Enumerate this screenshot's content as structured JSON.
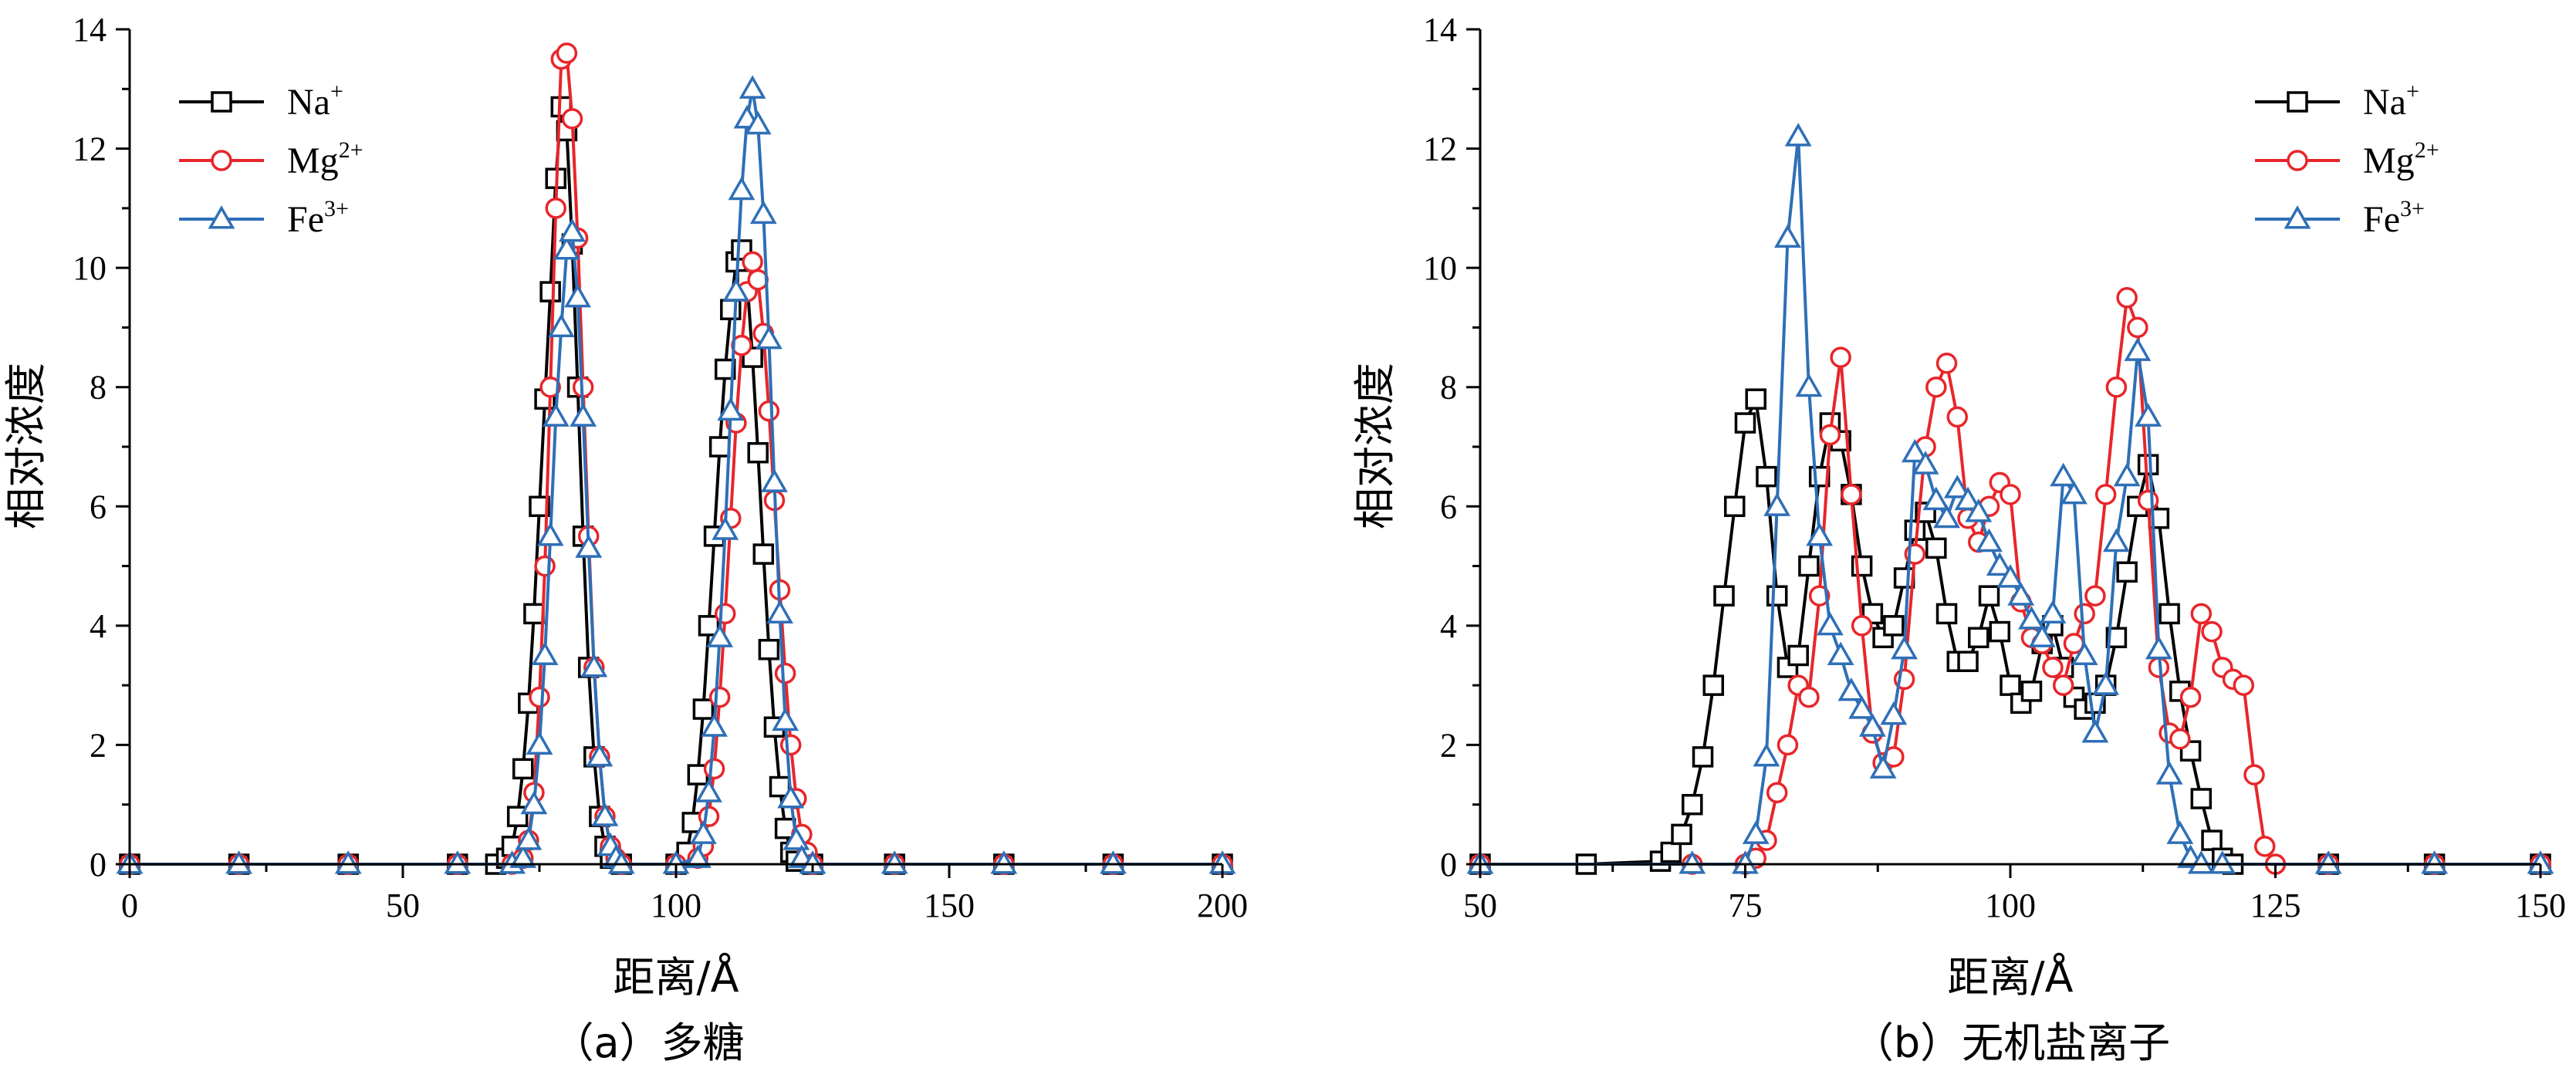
{
  "chart_data": [
    {
      "type": "line",
      "xlabel": "距离/Å",
      "ylabel": "相对浓度",
      "caption": "（a）多糖",
      "xlim": [
        0,
        200
      ],
      "ylim": [
        0,
        14
      ],
      "xticks": [
        0,
        50,
        100,
        150,
        200
      ],
      "yticks": [
        0,
        2,
        4,
        6,
        8,
        10,
        12,
        14
      ],
      "legend_position": "top-left",
      "series": [
        {
          "name": "Na",
          "sup": "+",
          "color": "#000000",
          "marker": "square",
          "x": [
            0,
            20,
            40,
            60,
            67,
            69,
            70,
            71,
            72,
            73,
            74,
            75,
            76,
            77,
            78,
            79,
            80,
            81,
            82,
            83,
            84,
            85,
            86,
            87,
            88,
            90,
            100,
            102,
            103,
            104,
            105,
            106,
            107,
            108,
            109,
            110,
            111,
            112,
            113,
            114,
            115,
            116,
            117,
            118,
            119,
            120,
            121,
            122,
            125,
            140,
            160,
            180,
            200
          ],
          "y": [
            0,
            0,
            0,
            0,
            0,
            0.1,
            0.3,
            0.8,
            1.6,
            2.7,
            4.2,
            6,
            7.8,
            9.6,
            11.5,
            12.7,
            12.3,
            10.4,
            8,
            5.5,
            3.3,
            1.8,
            0.8,
            0.3,
            0.1,
            0,
            0,
            0.2,
            0.7,
            1.5,
            2.6,
            4,
            5.5,
            7,
            8.3,
            9.3,
            10.1,
            10.3,
            9.8,
            8.5,
            6.9,
            5.2,
            3.6,
            2.3,
            1.3,
            0.6,
            0.2,
            0.05,
            0,
            0,
            0,
            0,
            0
          ]
        },
        {
          "name": "Mg",
          "sup": "2+",
          "color": "#e8262a",
          "marker": "circle",
          "x": [
            0,
            20,
            40,
            60,
            70,
            72,
            73,
            74,
            75,
            76,
            77,
            78,
            79,
            80,
            81,
            82,
            83,
            84,
            85,
            86,
            87,
            88,
            89,
            90,
            100,
            104,
            105,
            106,
            107,
            108,
            109,
            110,
            111,
            112,
            113,
            114,
            115,
            116,
            117,
            118,
            119,
            120,
            121,
            122,
            123,
            124,
            125,
            140,
            160,
            180,
            200
          ],
          "y": [
            0,
            0,
            0,
            0,
            0,
            0.1,
            0.4,
            1.2,
            2.8,
            5,
            8,
            11,
            13.5,
            13.6,
            12.5,
            10.5,
            8,
            5.5,
            3.3,
            1.8,
            0.8,
            0.3,
            0.1,
            0,
            0,
            0.1,
            0.3,
            0.8,
            1.6,
            2.8,
            4.2,
            5.8,
            7.4,
            8.7,
            9.6,
            10.1,
            9.8,
            8.9,
            7.6,
            6.1,
            4.6,
            3.2,
            2,
            1.1,
            0.5,
            0.2,
            0,
            0,
            0,
            0,
            0
          ]
        },
        {
          "name": "Fe",
          "sup": "3+",
          "color": "#2e6fb7",
          "marker": "triangle",
          "x": [
            0,
            20,
            40,
            60,
            70,
            72,
            73,
            74,
            75,
            76,
            77,
            78,
            79,
            80,
            81,
            82,
            83,
            84,
            85,
            86,
            87,
            88,
            89,
            90,
            100,
            104,
            105,
            106,
            107,
            108,
            109,
            110,
            111,
            112,
            113,
            114,
            115,
            116,
            117,
            118,
            119,
            120,
            121,
            122,
            123,
            125,
            140,
            160,
            180,
            200
          ],
          "y": [
            0,
            0,
            0,
            0,
            0,
            0.1,
            0.4,
            1,
            2,
            3.5,
            5.5,
            7.5,
            9,
            10.3,
            10.6,
            9.5,
            7.5,
            5.3,
            3.3,
            1.8,
            0.8,
            0.3,
            0.1,
            0,
            0,
            0.1,
            0.5,
            1.2,
            2.3,
            3.8,
            5.6,
            7.6,
            9.6,
            11.3,
            12.5,
            13,
            12.4,
            10.9,
            8.8,
            6.4,
            4.2,
            2.4,
            1.1,
            0.4,
            0.1,
            0,
            0,
            0,
            0,
            0
          ]
        }
      ]
    },
    {
      "type": "line",
      "xlabel": "距离/Å",
      "ylabel": "相对浓度",
      "caption": "（b）无机盐离子",
      "xlim": [
        50,
        150
      ],
      "ylim": [
        0,
        14
      ],
      "xticks": [
        50,
        75,
        100,
        125,
        150
      ],
      "yticks": [
        0,
        2,
        4,
        6,
        8,
        10,
        12,
        14
      ],
      "legend_position": "top-right",
      "series": [
        {
          "name": "Na",
          "sup": "+",
          "color": "#000000",
          "marker": "square",
          "x": [
            50,
            60,
            67,
            68,
            69,
            70,
            71,
            72,
            73,
            74,
            75,
            76,
            77,
            78,
            79,
            80,
            81,
            82,
            83,
            84,
            85,
            86,
            87,
            88,
            89,
            90,
            91,
            92,
            93,
            94,
            95,
            96,
            97,
            98,
            99,
            100,
            101,
            102,
            103,
            104,
            105,
            106,
            107,
            108,
            109,
            110,
            111,
            112,
            113,
            114,
            115,
            116,
            117,
            118,
            119,
            120,
            121,
            130,
            140,
            150
          ],
          "y": [
            0,
            0,
            0.05,
            0.2,
            0.5,
            1,
            1.8,
            3,
            4.5,
            6,
            7.4,
            7.8,
            6.5,
            4.5,
            3.3,
            3.5,
            5,
            6.5,
            7.4,
            7.1,
            6.2,
            5,
            4.2,
            3.8,
            4,
            4.8,
            5.6,
            5.9,
            5.3,
            4.2,
            3.4,
            3.4,
            3.8,
            4.5,
            3.9,
            3,
            2.7,
            2.9,
            3.7,
            4,
            3.3,
            2.8,
            2.6,
            2.7,
            3,
            3.8,
            4.9,
            6,
            6.7,
            5.8,
            4.2,
            2.9,
            1.9,
            1.1,
            0.4,
            0.1,
            0,
            0,
            0,
            0
          ]
        },
        {
          "name": "Mg",
          "sup": "2+",
          "color": "#e8262a",
          "marker": "circle",
          "x": [
            50,
            70,
            75,
            76,
            77,
            78,
            79,
            80,
            81,
            82,
            83,
            84,
            85,
            86,
            87,
            88,
            89,
            90,
            91,
            92,
            93,
            94,
            95,
            96,
            97,
            98,
            99,
            100,
            101,
            102,
            103,
            104,
            105,
            106,
            107,
            108,
            109,
            110,
            111,
            112,
            113,
            114,
            115,
            116,
            117,
            118,
            119,
            120,
            121,
            122,
            123,
            124,
            125,
            130,
            140,
            150
          ],
          "y": [
            0,
            0,
            0,
            0.1,
            0.4,
            1.2,
            2,
            3,
            2.8,
            4.5,
            7.2,
            8.5,
            6.2,
            4,
            2.2,
            1.7,
            1.8,
            3.1,
            5.2,
            7,
            8,
            8.4,
            7.5,
            5.8,
            5.4,
            6,
            6.4,
            6.2,
            4.4,
            3.8,
            3.7,
            3.3,
            3,
            3.7,
            4.2,
            4.5,
            6.2,
            8,
            9.5,
            9,
            6.1,
            3.3,
            2.2,
            2.1,
            2.8,
            4.2,
            3.9,
            3.3,
            3.1,
            3,
            1.5,
            0.3,
            0,
            0,
            0,
            0
          ]
        },
        {
          "name": "Fe",
          "sup": "3+",
          "color": "#2e6fb7",
          "marker": "triangle",
          "x": [
            50,
            70,
            75,
            76,
            77,
            78,
            79,
            80,
            81,
            82,
            83,
            84,
            85,
            86,
            87,
            88,
            89,
            90,
            91,
            92,
            93,
            94,
            95,
            96,
            97,
            98,
            99,
            100,
            101,
            102,
            103,
            104,
            105,
            106,
            107,
            108,
            109,
            110,
            111,
            112,
            113,
            114,
            115,
            116,
            117,
            118,
            120,
            130,
            140,
            150
          ],
          "y": [
            0,
            0,
            0,
            0.5,
            1.8,
            6,
            10.5,
            12.2,
            8,
            5.5,
            4,
            3.5,
            2.9,
            2.6,
            2.3,
            1.6,
            2.5,
            3.6,
            6.9,
            6.7,
            6.1,
            5.8,
            6.3,
            6.1,
            5.9,
            5.4,
            5,
            4.8,
            4.5,
            4.1,
            3.8,
            4.2,
            6.5,
            6.2,
            3.5,
            2.2,
            3,
            5.4,
            6.5,
            8.6,
            7.5,
            3.6,
            1.5,
            0.5,
            0.1,
            0,
            0,
            0,
            0,
            0
          ]
        }
      ]
    }
  ]
}
